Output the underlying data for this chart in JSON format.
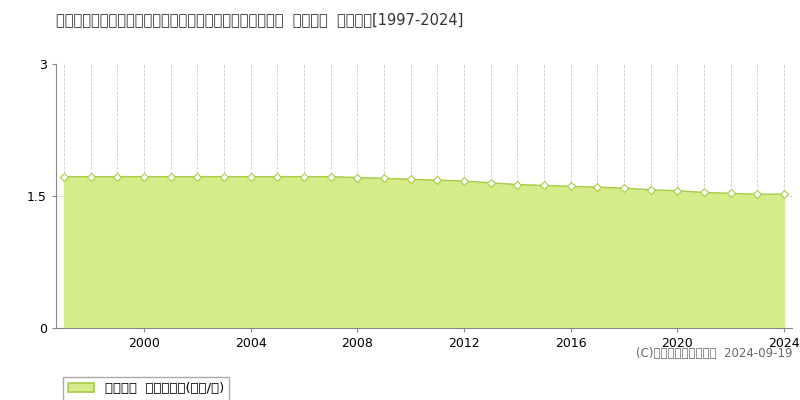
{
  "title": "宮崎県西諸県郡高原町大字西麓字原ノ出口２１０７番１外  公示地価  地価推移[1997-2024]",
  "years": [
    1997,
    1998,
    1999,
    2000,
    2001,
    2002,
    2003,
    2004,
    2005,
    2006,
    2007,
    2008,
    2009,
    2010,
    2011,
    2012,
    2013,
    2014,
    2015,
    2016,
    2017,
    2018,
    2019,
    2020,
    2021,
    2022,
    2023,
    2024
  ],
  "values": [
    1.72,
    1.72,
    1.72,
    1.72,
    1.72,
    1.72,
    1.72,
    1.72,
    1.72,
    1.72,
    1.72,
    1.71,
    1.7,
    1.69,
    1.68,
    1.67,
    1.65,
    1.63,
    1.62,
    1.61,
    1.6,
    1.59,
    1.57,
    1.56,
    1.54,
    1.53,
    1.52,
    1.52
  ],
  "line_color": "#a8cc44",
  "fill_color": "#d4ed8a",
  "marker_face_color": "#ffffff",
  "marker_edge_color": "#a8cc44",
  "grid_color": "#cccccc",
  "background_color": "#ffffff",
  "legend_label": "公示地価  平均坪単価(万円/坪)",
  "copyright_text": "(C)土地価格ドットコム  2024-09-19",
  "ylim": [
    0,
    3
  ],
  "yticks": [
    0,
    1.5,
    3
  ],
  "xtick_years": [
    2000,
    2004,
    2008,
    2012,
    2016,
    2020,
    2024
  ],
  "title_fontsize": 10.5,
  "legend_fontsize": 9.5,
  "copyright_fontsize": 8.5,
  "tick_fontsize": 9
}
